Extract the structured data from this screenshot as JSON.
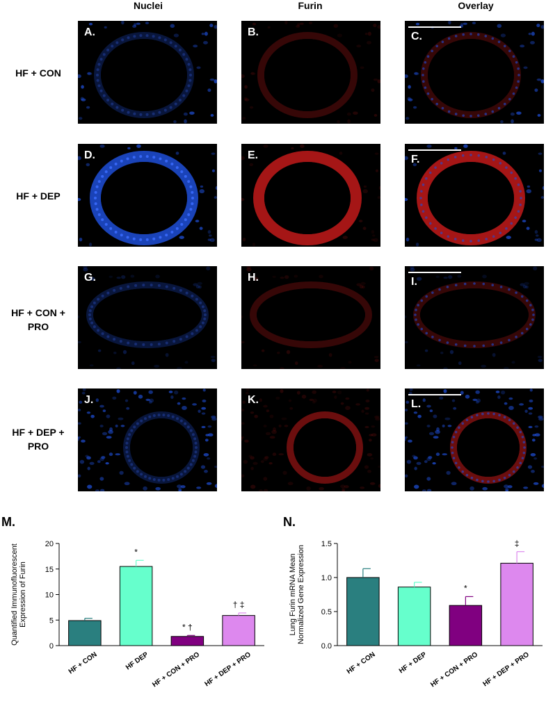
{
  "columns": [
    "Nuclei",
    "Furin",
    "Overlay"
  ],
  "rows": [
    {
      "label_lines": [
        "HF + CON"
      ],
      "panels": [
        "A.",
        "B.",
        "C."
      ]
    },
    {
      "label_lines": [
        "HF + DEP"
      ],
      "panels": [
        "D.",
        "E.",
        "F."
      ]
    },
    {
      "label_lines": [
        "HF + CON +",
        "PRO"
      ],
      "panels": [
        "G.",
        "H.",
        "I."
      ]
    },
    {
      "label_lines": [
        "HF + DEP +",
        "PRO"
      ],
      "panels": [
        "J.",
        "K.",
        "L."
      ]
    }
  ],
  "colors": {
    "nuclei": "#1f4fd8",
    "furin": "#c21a1a",
    "hf_con": "#2a7f7f",
    "hf_dep": "#66ffcc",
    "hf_con_pro": "#800080",
    "hf_dep_pro": "#dd88ee"
  },
  "chart_data": [
    {
      "panel_label": "M.",
      "type": "bar",
      "categories": [
        "HF + CON",
        "HF DEP",
        "HF + CON + PRO",
        "HF + DEP + PRO"
      ],
      "values": [
        4.9,
        15.5,
        1.8,
        5.9
      ],
      "errors": [
        0.45,
        1.2,
        0.2,
        0.5
      ],
      "annotations": [
        "",
        "*",
        "* †",
        "† ‡"
      ],
      "ylabel_lines": [
        "Quantified Immunofluorescent",
        "Expression of Furin"
      ],
      "ylim": [
        0,
        20
      ],
      "yticks": [
        "0",
        "5",
        "10",
        "15",
        "20"
      ],
      "ytick_values": [
        0,
        5,
        10,
        15,
        20
      ],
      "colors": [
        "#2a7f7f",
        "#66ffcc",
        "#800080",
        "#dd88ee"
      ],
      "grid": false
    },
    {
      "panel_label": "N.",
      "type": "bar",
      "categories": [
        "HF + CON",
        "HF + DEP",
        "HF + CON + PRO",
        "HF + DEP + PRO"
      ],
      "values": [
        1.0,
        0.86,
        0.59,
        1.21
      ],
      "errors": [
        0.13,
        0.07,
        0.13,
        0.17
      ],
      "annotations": [
        "",
        "",
        "*",
        "‡"
      ],
      "ylabel_lines": [
        "Lung Furin mRNA Mean",
        "Normalized Gene Expression"
      ],
      "ylim": [
        0,
        1.5
      ],
      "yticks": [
        "0.0",
        "0.5",
        "1.0",
        "1.5"
      ],
      "ytick_values": [
        0,
        0.5,
        1.0,
        1.5
      ],
      "colors": [
        "#2a7f7f",
        "#66ffcc",
        "#800080",
        "#dd88ee"
      ],
      "grid": false
    }
  ]
}
